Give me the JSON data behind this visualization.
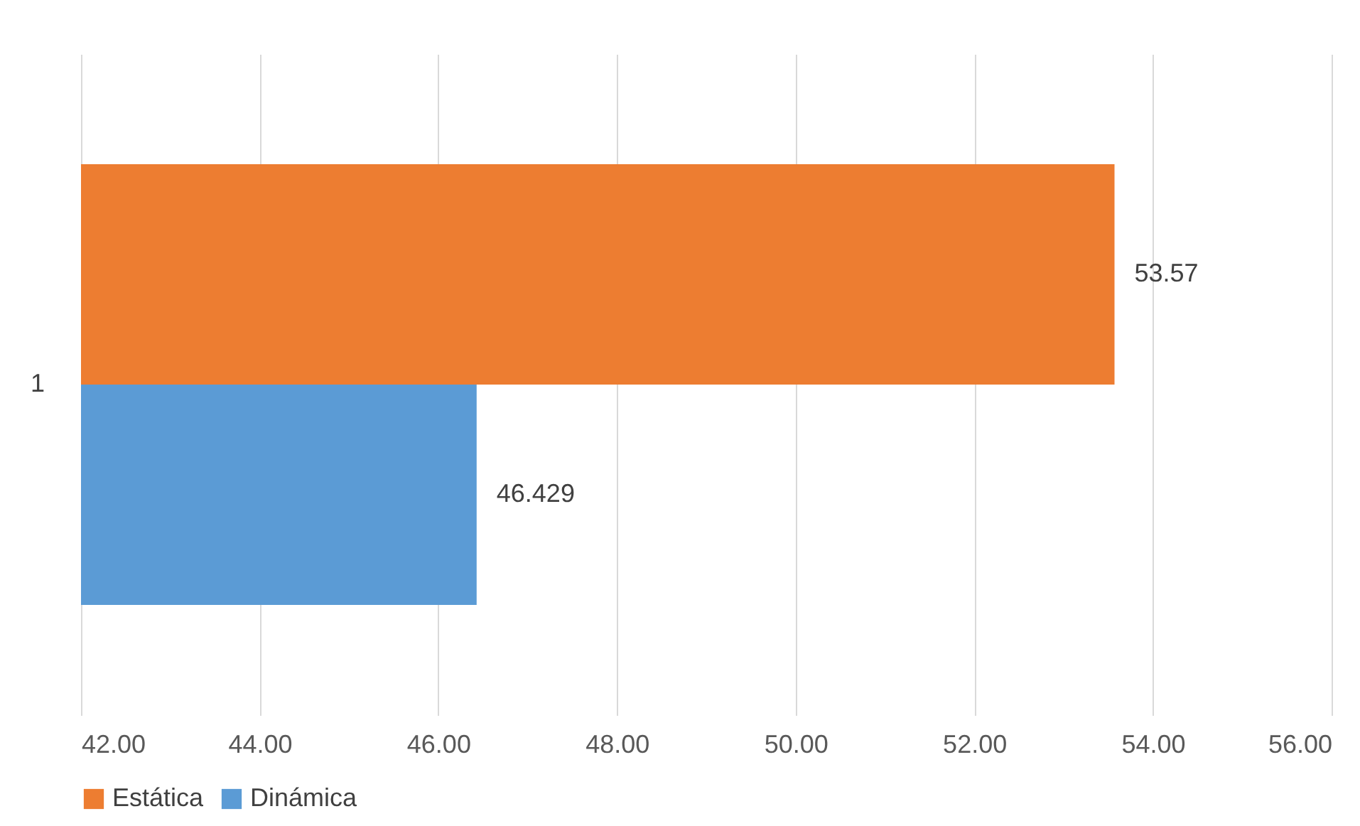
{
  "chart_data": {
    "type": "bar",
    "orientation": "horizontal",
    "categories": [
      "1"
    ],
    "series": [
      {
        "name": "Estática",
        "color": "#ed7d31",
        "values": [
          53.57
        ]
      },
      {
        "name": "Dinámica",
        "color": "#5b9bd5",
        "values": [
          46.429
        ]
      }
    ],
    "xlim": [
      42,
      56
    ],
    "xticks": [
      {
        "value": 42,
        "label": "42.00"
      },
      {
        "value": 44,
        "label": "44.00"
      },
      {
        "value": 46,
        "label": "46.00"
      },
      {
        "value": 48,
        "label": "48.00"
      },
      {
        "value": 50,
        "label": "50.00"
      },
      {
        "value": 52,
        "label": "52.00"
      },
      {
        "value": 54,
        "label": "54.00"
      },
      {
        "value": 56,
        "label": "56.00"
      }
    ],
    "grid": "x",
    "legend": "bottom",
    "data_labels": true
  }
}
